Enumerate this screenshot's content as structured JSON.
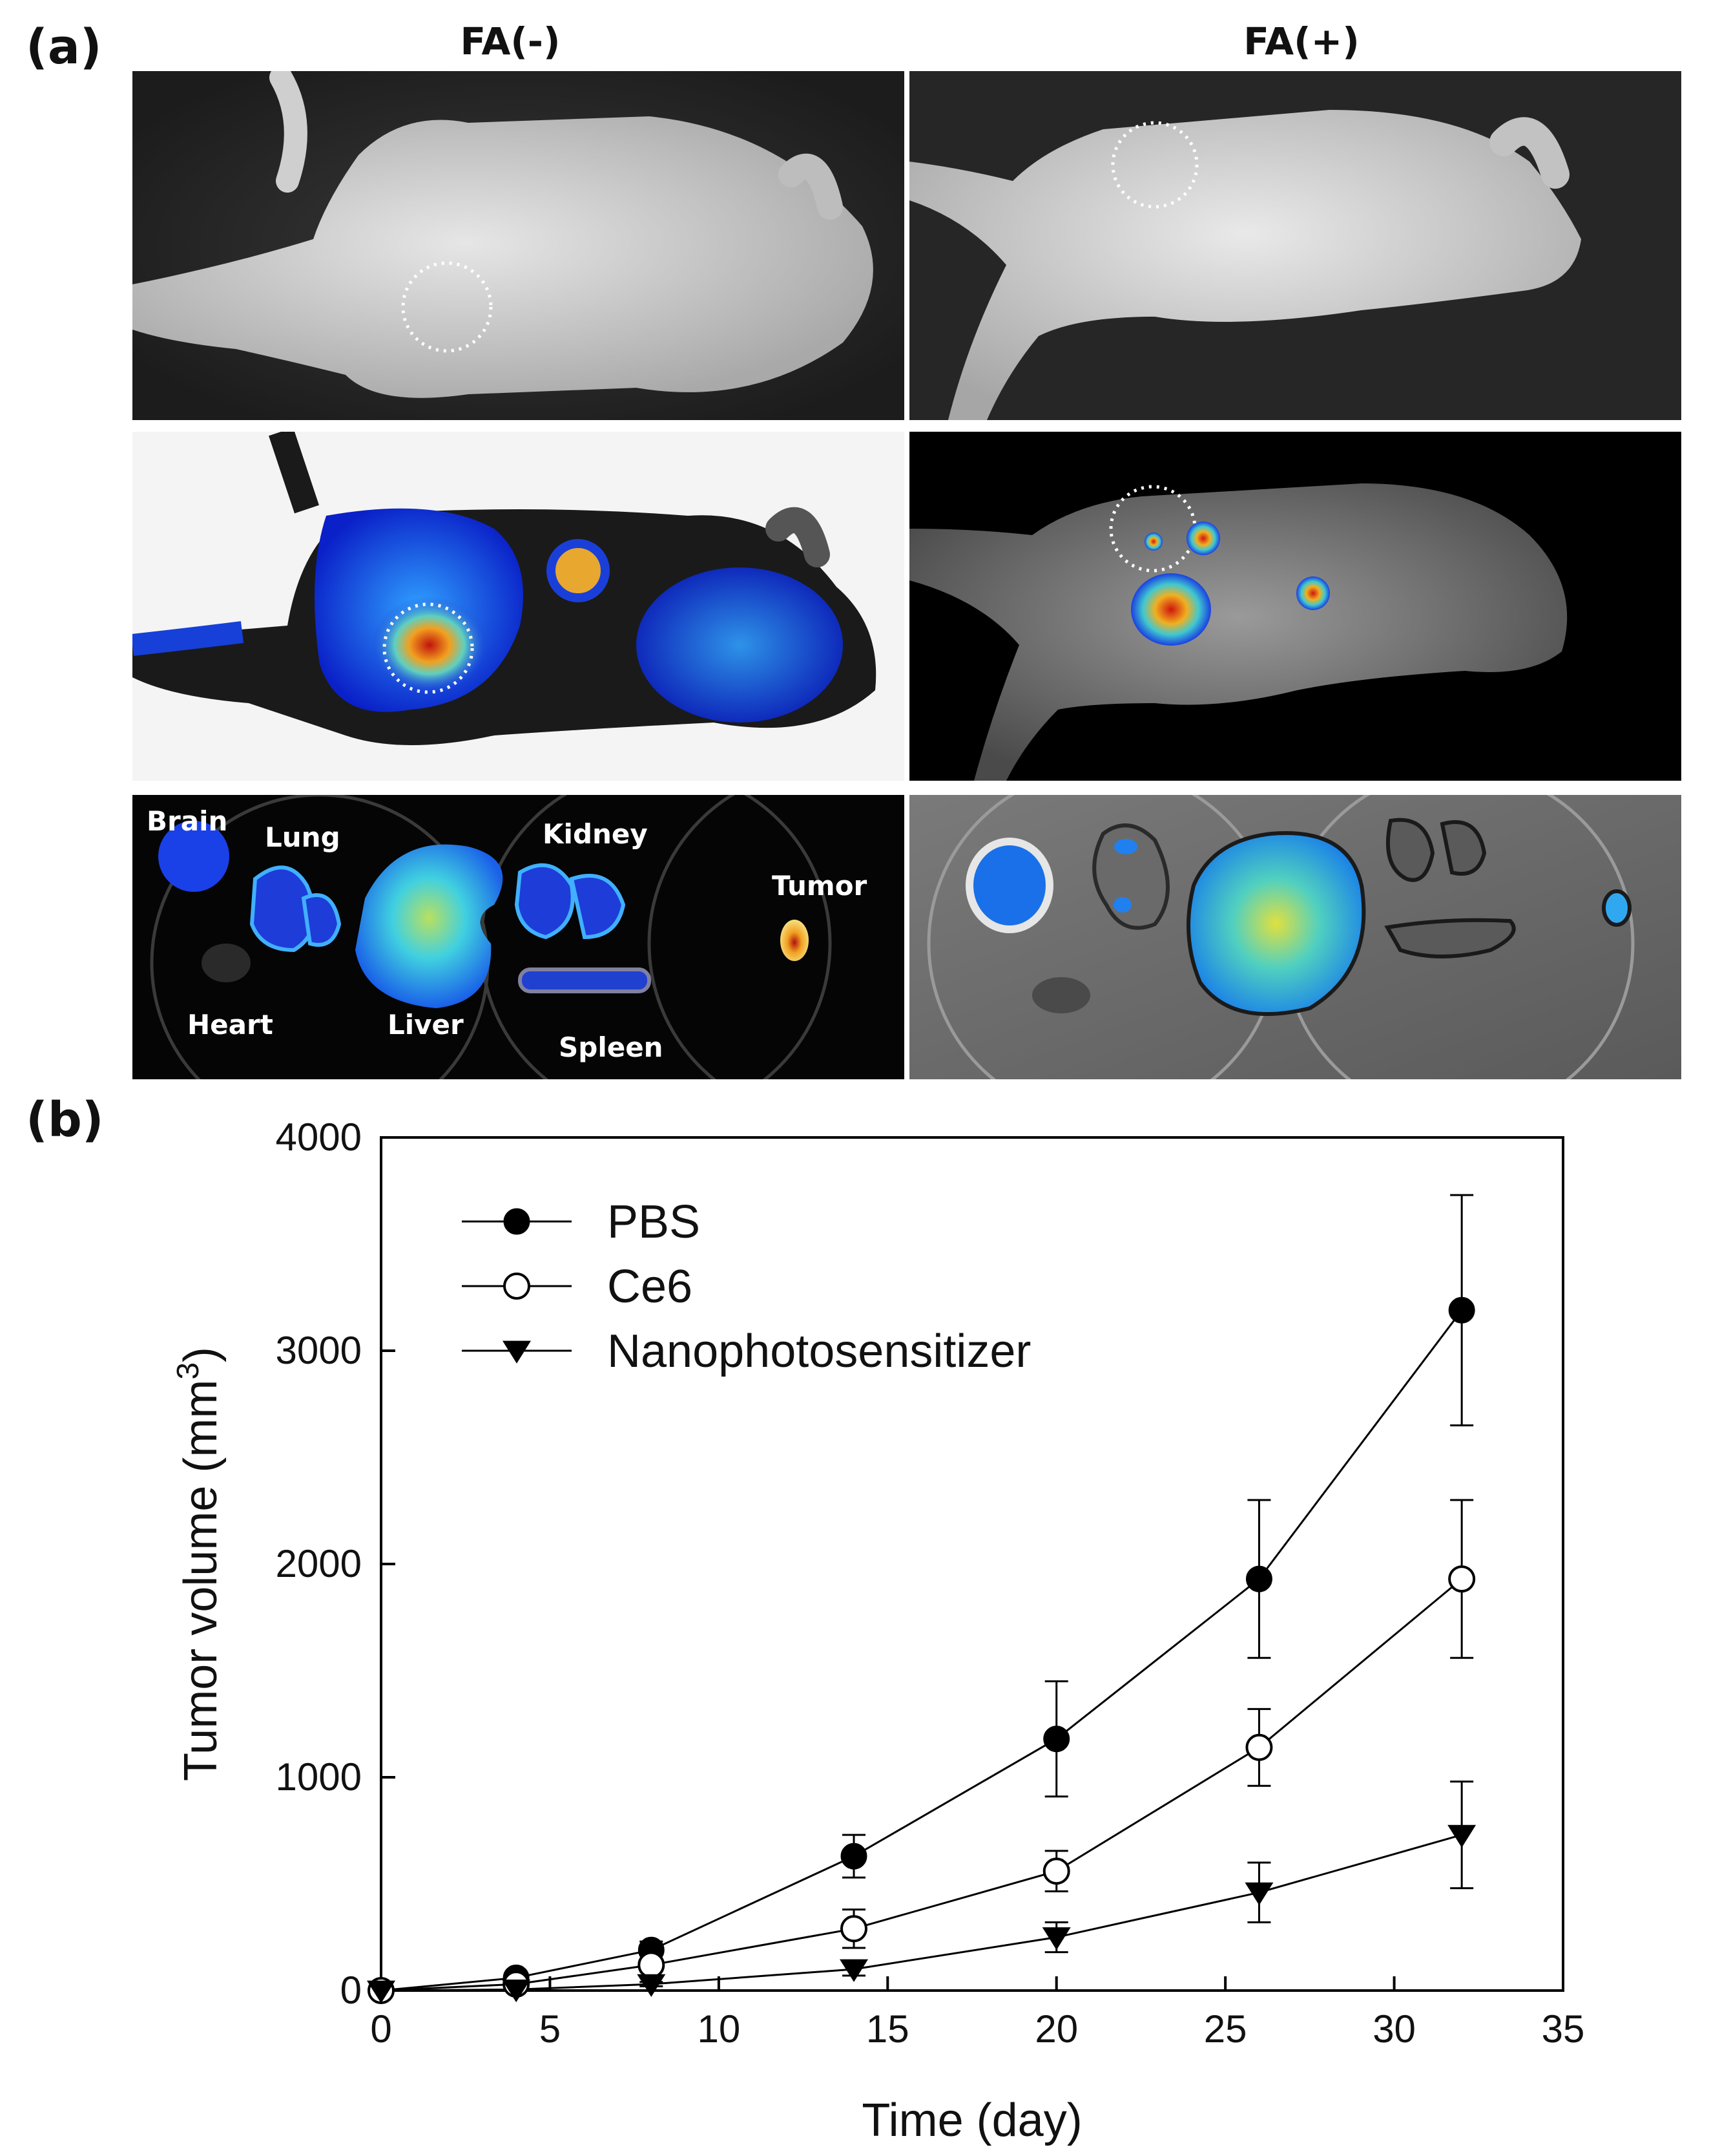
{
  "panel_a": {
    "letter": "(a)",
    "columns": [
      "FA(-)",
      "FA(+)"
    ],
    "organ_labels": {
      "brain": "Brain",
      "lung": "Lung",
      "kidney": "Kidney",
      "tumor": "Tumor",
      "heart": "Heart",
      "liver": "Liver",
      "spleen": "Spleen"
    }
  },
  "panel_b": {
    "letter": "(b)"
  },
  "chart_data": {
    "type": "line",
    "xlabel": "Time (day)",
    "ylabel": "Tumor volume (mm",
    "ylabel_superscript": "3",
    "ylabel_close": ")",
    "xlim": [
      0,
      35
    ],
    "ylim": [
      0,
      4000
    ],
    "xticks": [
      0,
      5,
      10,
      15,
      20,
      25,
      30,
      35
    ],
    "yticks": [
      0,
      1000,
      2000,
      3000,
      4000
    ],
    "grid": false,
    "legend_position": "top-left",
    "x": [
      0,
      4,
      8,
      14,
      20,
      26,
      32
    ],
    "series": [
      {
        "name": "PBS",
        "marker": "filled-circle",
        "values": [
          0,
          60,
          190,
          630,
          1180,
          1930,
          3190
        ],
        "error": [
          0,
          15,
          40,
          100,
          270,
          370,
          540
        ]
      },
      {
        "name": "Ce6",
        "marker": "open-circle",
        "values": [
          0,
          30,
          120,
          290,
          560,
          1140,
          1930
        ],
        "error": [
          0,
          10,
          30,
          90,
          95,
          180,
          370
        ]
      },
      {
        "name": "Nanophotosensitizer",
        "marker": "filled-triangle-down",
        "values": [
          0,
          5,
          30,
          100,
          250,
          460,
          730
        ],
        "error": [
          0,
          5,
          10,
          30,
          70,
          140,
          250
        ]
      }
    ]
  }
}
